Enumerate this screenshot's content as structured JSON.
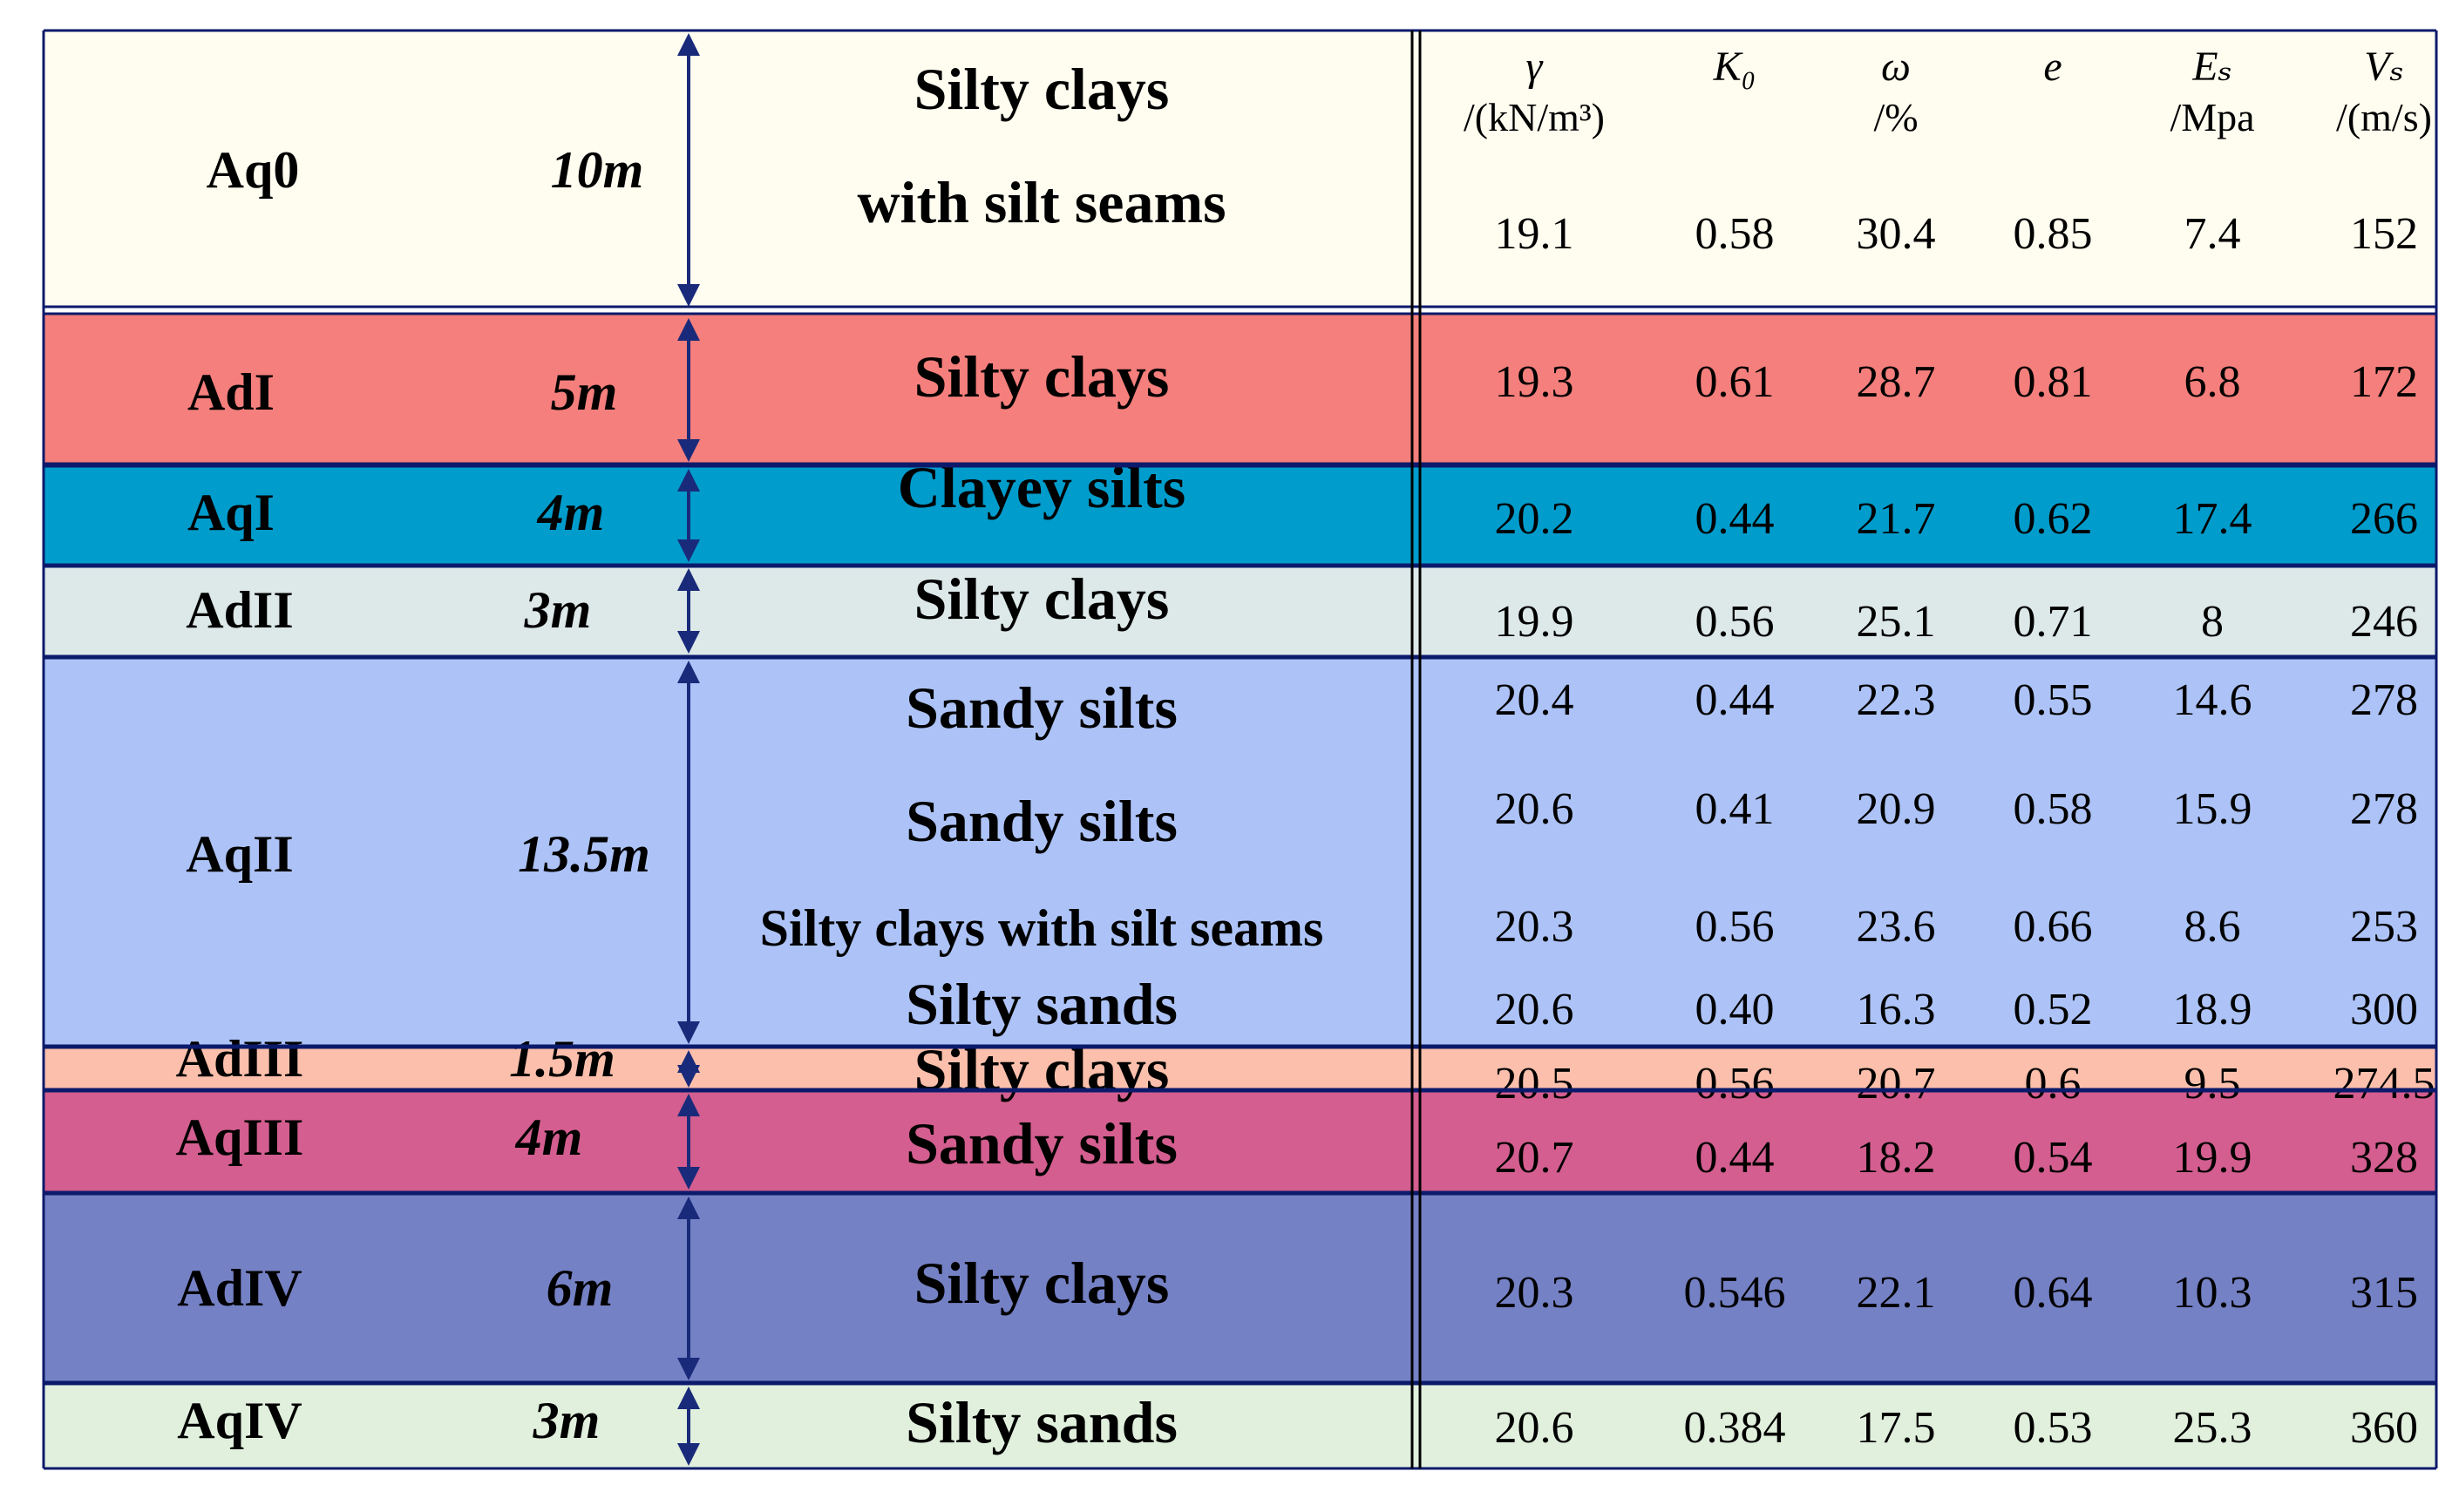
{
  "headers": [
    {
      "symbol": "γ",
      "unit": "/(kN/m³)"
    },
    {
      "symbol": "K₀",
      "unit": ""
    },
    {
      "symbol": "ω",
      "unit": "/%"
    },
    {
      "symbol": "e",
      "unit": ""
    },
    {
      "symbol": "Eₛ",
      "unit": "/Mpa"
    },
    {
      "symbol": "Vₛ",
      "unit": "/(m/s)"
    }
  ],
  "layers": [
    {
      "name": "Aq0",
      "thickness": "10m",
      "color": "#fffdf0",
      "soils": [
        "Silty clays",
        "with silt seams"
      ],
      "values": [
        [
          "19.1",
          "0.58",
          "30.4",
          "0.85",
          "7.4",
          "152"
        ]
      ]
    },
    {
      "name": "AdI",
      "thickness": "5m",
      "color": "#f47f7c",
      "soils": [
        "Silty clays"
      ],
      "values": [
        [
          "19.3",
          "0.61",
          "28.7",
          "0.81",
          "6.8",
          "172"
        ]
      ]
    },
    {
      "name": "AqI",
      "thickness": "4m",
      "color": "#009ccc",
      "soils": [
        "Clayey silts"
      ],
      "values": [
        [
          "20.2",
          "0.44",
          "21.7",
          "0.62",
          "17.4",
          "266"
        ]
      ]
    },
    {
      "name": "AdII",
      "thickness": "3m",
      "color": "#dde8e8",
      "soils": [
        "Silty clays"
      ],
      "values": [
        [
          "19.9",
          "0.56",
          "25.1",
          "0.71",
          "8",
          "246"
        ]
      ]
    },
    {
      "name": "AqII",
      "thickness": "13.5m",
      "color": "#adc3f7",
      "soils": [
        "Sandy silts",
        "Sandy silts",
        "Silty clays with silt seams",
        "Silty sands"
      ],
      "values": [
        [
          "20.4",
          "0.44",
          "22.3",
          "0.55",
          "14.6",
          "278"
        ],
        [
          "20.6",
          "0.41",
          "20.9",
          "0.58",
          "15.9",
          "278"
        ],
        [
          "20.3",
          "0.56",
          "23.6",
          "0.66",
          "8.6",
          "253"
        ],
        [
          "20.6",
          "0.40",
          "16.3",
          "0.52",
          "18.9",
          "300"
        ]
      ]
    },
    {
      "name": "AdIII",
      "thickness": "1.5m",
      "color": "#fbbfab",
      "soils": [
        "Silty clays"
      ],
      "values": [
        [
          "20.5",
          "0.56",
          "20.7",
          "0.6",
          "9.5",
          "274.5"
        ]
      ]
    },
    {
      "name": "AqIII",
      "thickness": "4m",
      "color": "#d35e8f",
      "soils": [
        "Sandy silts"
      ],
      "values": [
        [
          "20.7",
          "0.44",
          "18.2",
          "0.54",
          "19.9",
          "328"
        ]
      ]
    },
    {
      "name": "AdIV",
      "thickness": "6m",
      "color": "#7581c5",
      "soils": [
        "Silty clays"
      ],
      "values": [
        [
          "20.3",
          "0.546",
          "22.1",
          "0.64",
          "10.3",
          "315"
        ]
      ]
    },
    {
      "name": "AqIV",
      "thickness": "3m",
      "color": "#e1f0dd",
      "soils": [
        "Silty sands"
      ],
      "values": [
        [
          "20.6",
          "0.384",
          "17.5",
          "0.53",
          "25.3",
          "360"
        ]
      ]
    }
  ],
  "colors": {
    "border": "#0c1a6b",
    "arrow": "#1a2a7a",
    "text": "#000000"
  }
}
